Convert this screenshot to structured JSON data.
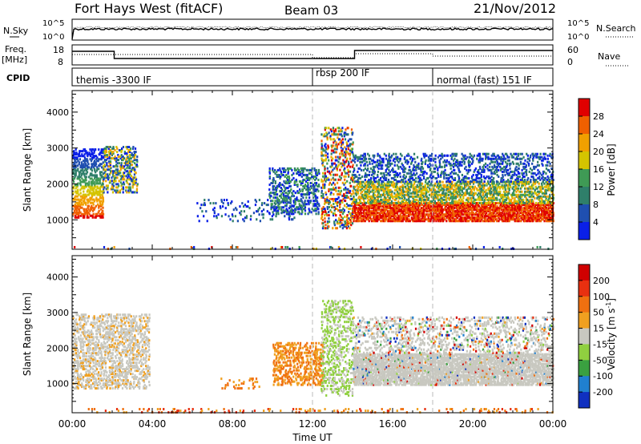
{
  "header": {
    "radar": "Fort Hays West (fitACF)",
    "beam": "Beam 03",
    "date": "21/Nov/2012"
  },
  "noise_panel": {
    "left_label": "N.Sky",
    "left_ticks": [
      "10^5",
      "10^0"
    ],
    "right_ticks": [
      "10^5",
      "10^0"
    ],
    "right_label": "N.Search"
  },
  "freq_panel": {
    "left_label_1": "Freq.",
    "left_label_2": "[MHz]",
    "left_ticks": [
      "18",
      "8"
    ],
    "right_ticks": [
      "60",
      "0"
    ],
    "right_label": "Nave"
  },
  "cpid_panel": {
    "label": "CPID",
    "segments": [
      {
        "label": "themis -3300 IF",
        "start_hour": 0
      },
      {
        "label": "rbsp 200 IF",
        "start_hour": 12
      },
      {
        "label": "normal (fast) 151 IF",
        "start_hour": 18
      }
    ]
  },
  "chart_data": [
    {
      "type": "heatmap",
      "name": "power",
      "ylabel": "Slant Range [km]",
      "xlabel": "Time UT",
      "xlim": [
        0,
        24
      ],
      "ylim": [
        180,
        4600
      ],
      "y_ticks": [
        "1000",
        "2000",
        "3000",
        "4000"
      ],
      "colorbar": {
        "label": "Power [dB]",
        "ticks": [
          "4",
          "8",
          "12",
          "16",
          "20",
          "24",
          "28"
        ],
        "colors": [
          "#0a1fe8",
          "#1f4fb0",
          "#2f7f6a",
          "#3f9a55",
          "#d4c400",
          "#f0a000",
          "#f06000",
          "#e00000"
        ]
      }
    },
    {
      "type": "heatmap",
      "name": "velocity",
      "ylabel": "Slant Range [km]",
      "xlabel": "Time UT",
      "xlim": [
        0,
        24
      ],
      "ylim": [
        180,
        4600
      ],
      "y_ticks": [
        "1000",
        "2000",
        "3000",
        "4000"
      ],
      "colorbar": {
        "label": "Velocity [m s^-1]",
        "ticks": [
          "200",
          "100",
          "50",
          "15",
          "-15",
          "-50",
          "-100",
          "-200"
        ],
        "colors": [
          "#1030c0",
          "#2080d0",
          "#3aa040",
          "#90d040",
          "#c8c8c0",
          "#f0a020",
          "#f07010",
          "#e83010",
          "#d00000"
        ]
      }
    }
  ],
  "x_axis": {
    "ticks": [
      "00:00",
      "04:00",
      "08:00",
      "12:00",
      "16:00",
      "20:00",
      "00:00"
    ],
    "label": "Time UT"
  }
}
